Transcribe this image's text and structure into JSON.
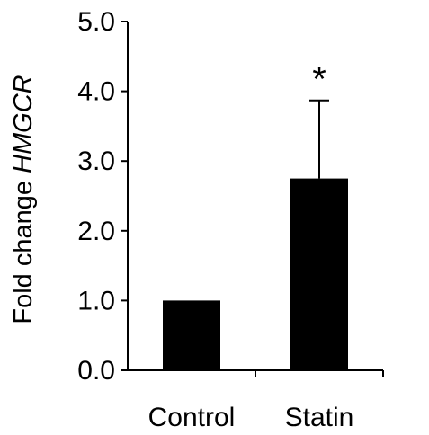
{
  "chart_data": {
    "type": "bar",
    "categories": [
      "Control",
      "Statin"
    ],
    "values": [
      1.0,
      2.75
    ],
    "error_upper": [
      0.0,
      1.12
    ],
    "significance": [
      "",
      "*"
    ],
    "ylabel": {
      "prefix": "Fold change ",
      "gene": "HMGCR"
    },
    "ylim": [
      0,
      5
    ],
    "yticks": [
      "0.0",
      "1.0",
      "2.0",
      "3.0",
      "4.0",
      "5.0"
    ],
    "grid": false,
    "legend": "none",
    "bar_color": "#000000",
    "axis_color": "#000000"
  }
}
